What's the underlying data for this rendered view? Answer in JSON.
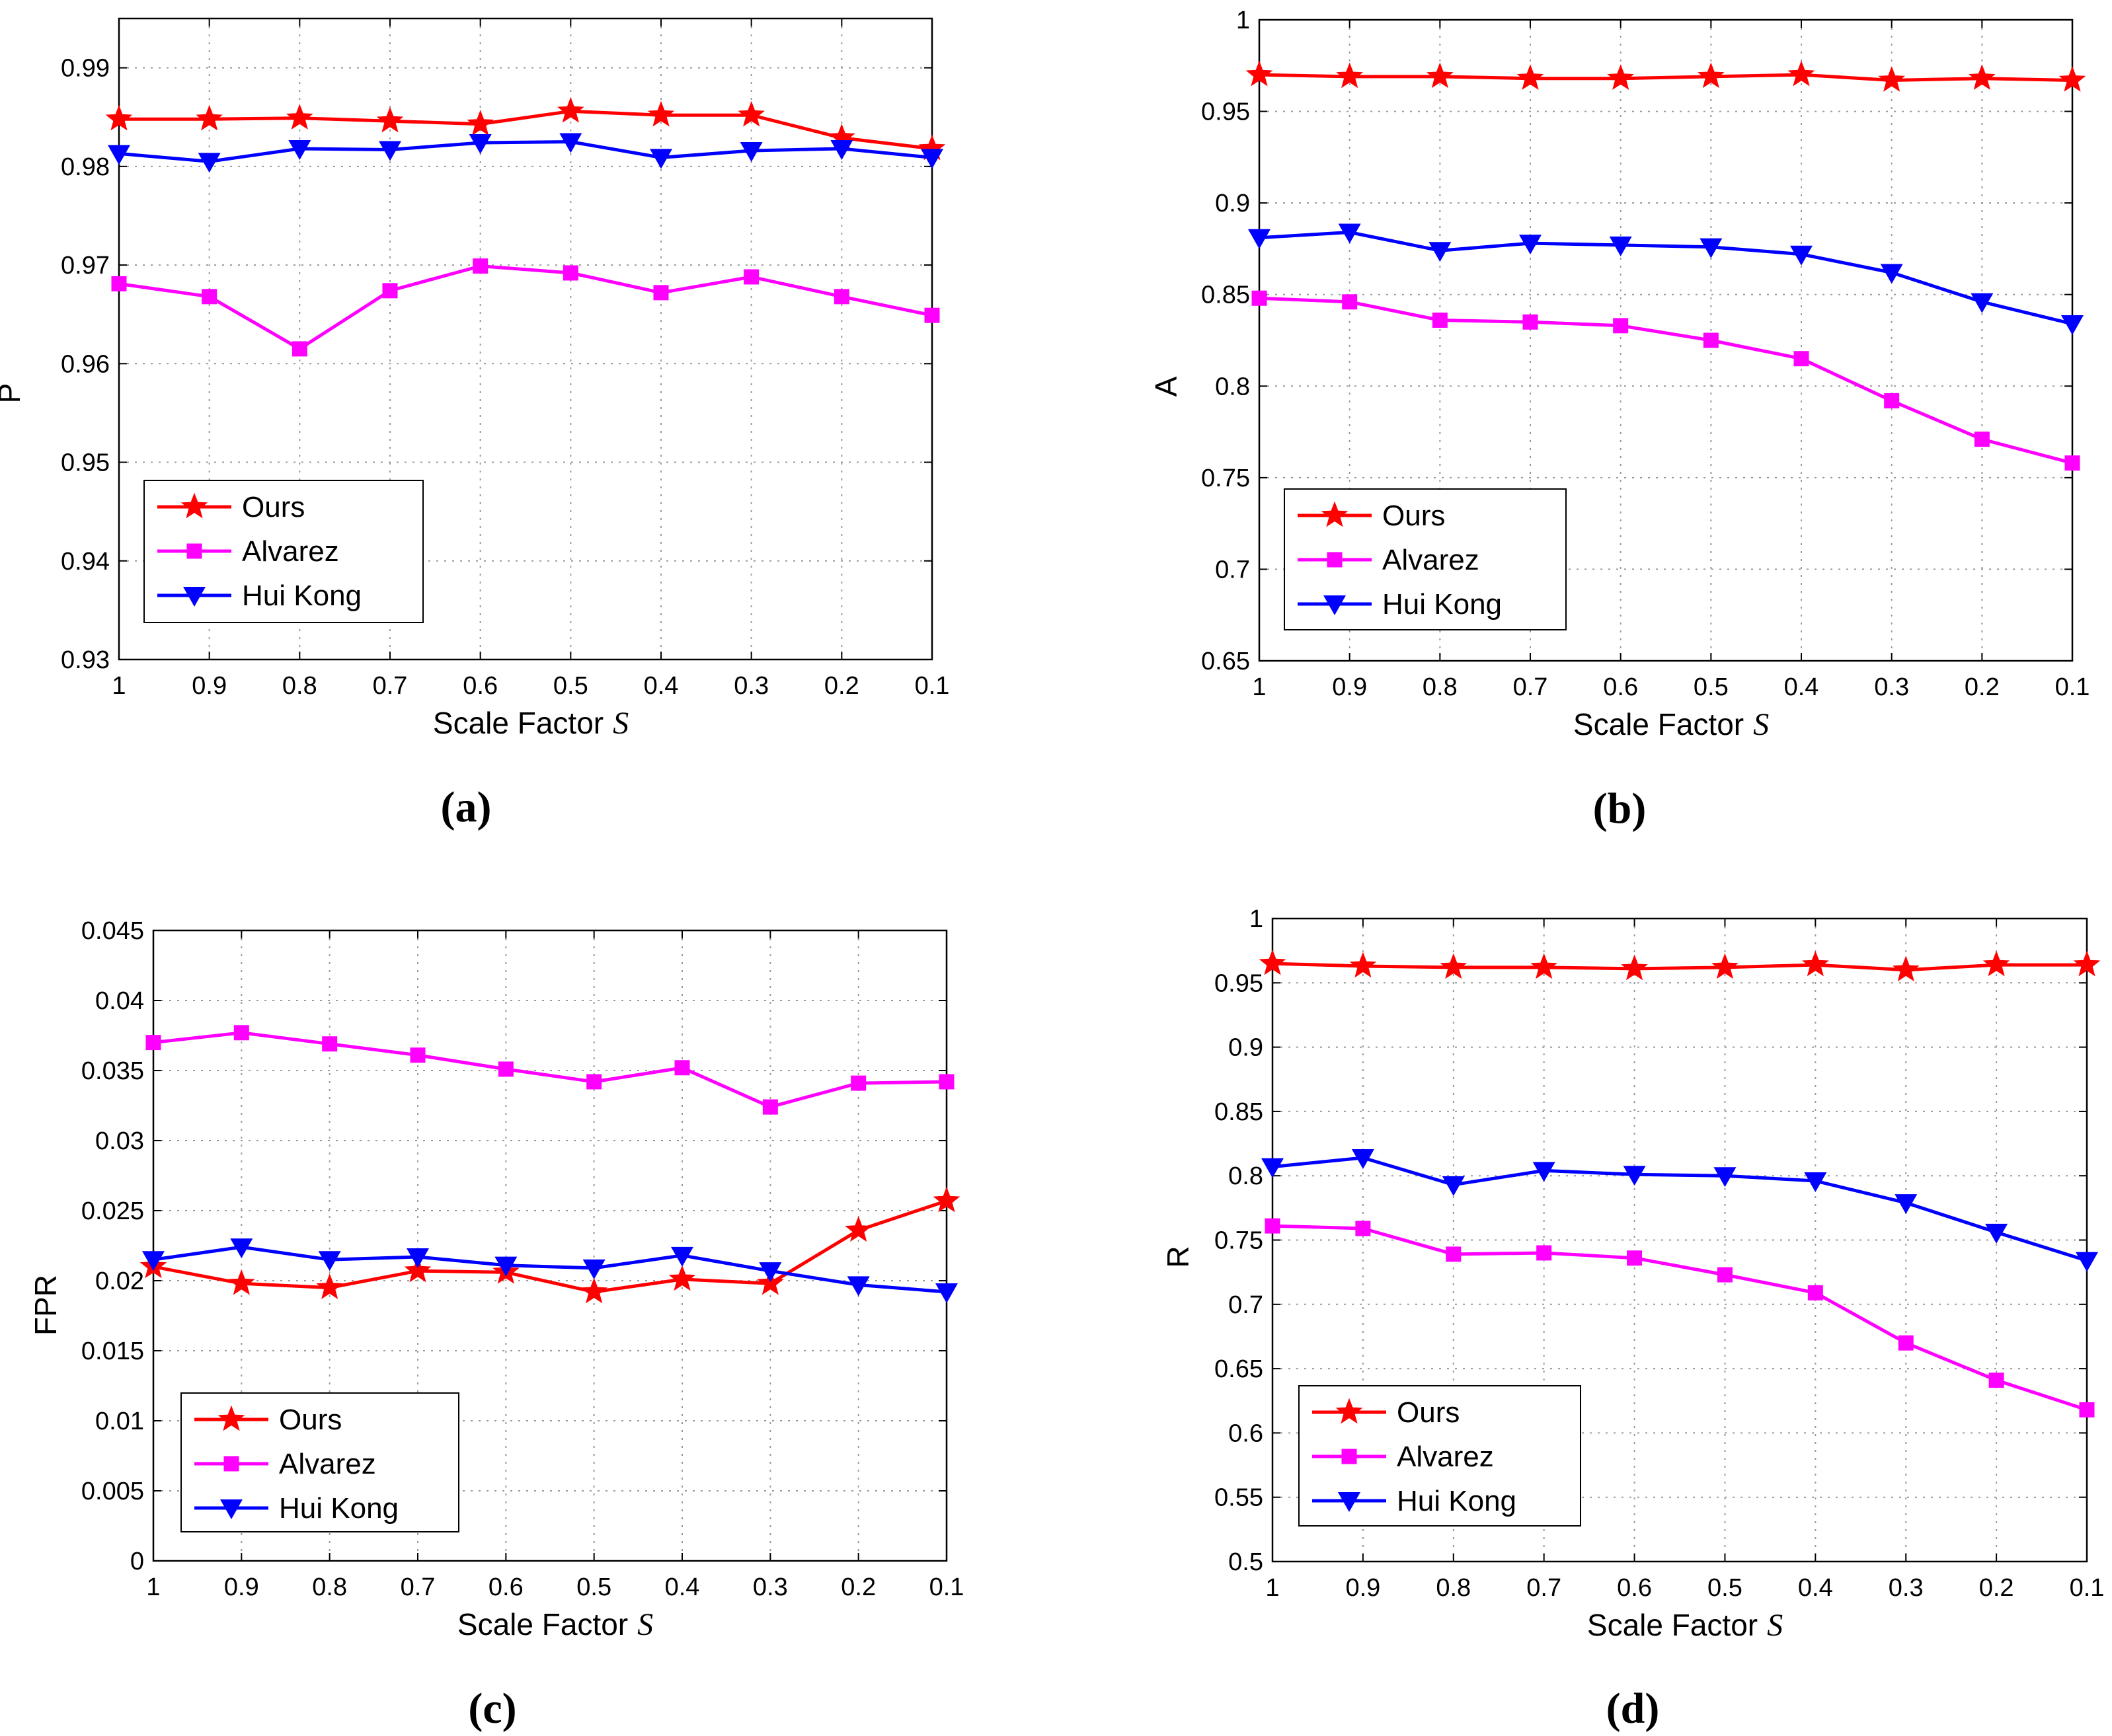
{
  "colors": {
    "ours": "#ff0000",
    "alvarez": "#ff00ff",
    "huikong": "#0000ff"
  },
  "markers": {
    "ours": "star",
    "alvarez": "square",
    "huikong": "triangle-down"
  },
  "chart_data": [
    {
      "panel_label": "(a)",
      "type": "line",
      "xlabel": "Scale Factor",
      "xlabel_var": "S",
      "ylabel": "P",
      "categories": [
        "1",
        "0.9",
        "0.8",
        "0.7",
        "0.6",
        "0.5",
        "0.4",
        "0.3",
        "0.2",
        "0.1"
      ],
      "ylim": [
        0.93,
        0.995
      ],
      "yticks": [
        0.93,
        0.94,
        0.95,
        0.96,
        0.97,
        0.98,
        0.99
      ],
      "ytick_labels": [
        "0.93",
        "0.94",
        "0.95",
        "0.96",
        "0.97",
        "0.98",
        "0.99"
      ],
      "grid": true,
      "legend_location": "lower-left",
      "series": [
        {
          "name": "Ours",
          "values": [
            0.9848,
            0.9848,
            0.9849,
            0.9846,
            0.9843,
            0.9856,
            0.9852,
            0.9852,
            0.9829,
            0.9818
          ]
        },
        {
          "name": "Alvarez",
          "values": [
            0.9681,
            0.9668,
            0.9615,
            0.9674,
            0.9699,
            0.9692,
            0.9672,
            0.9688,
            0.9668,
            0.9649
          ]
        },
        {
          "name": "Hui Kong",
          "values": [
            0.9813,
            0.9805,
            0.9818,
            0.9817,
            0.9824,
            0.9825,
            0.9809,
            0.9816,
            0.9818,
            0.9809
          ]
        }
      ]
    },
    {
      "panel_label": "(b)",
      "type": "line",
      "xlabel": "Scale Factor",
      "xlabel_var": "S",
      "ylabel": "A",
      "categories": [
        "1",
        "0.9",
        "0.8",
        "0.7",
        "0.6",
        "0.5",
        "0.4",
        "0.3",
        "0.2",
        "0.1"
      ],
      "ylim": [
        0.65,
        1.0
      ],
      "yticks": [
        0.65,
        0.7,
        0.75,
        0.8,
        0.85,
        0.9,
        0.95,
        1.0
      ],
      "ytick_labels": [
        "0.65",
        "0.7",
        "0.75",
        "0.8",
        "0.85",
        "0.9",
        "0.95",
        "1"
      ],
      "grid": true,
      "legend_location": "lower-left",
      "series": [
        {
          "name": "Ours",
          "values": [
            0.97,
            0.969,
            0.969,
            0.968,
            0.968,
            0.969,
            0.97,
            0.967,
            0.968,
            0.967
          ]
        },
        {
          "name": "Alvarez",
          "values": [
            0.848,
            0.846,
            0.836,
            0.835,
            0.833,
            0.825,
            0.815,
            0.792,
            0.771,
            0.758
          ]
        },
        {
          "name": "Hui Kong",
          "values": [
            0.881,
            0.884,
            0.874,
            0.878,
            0.877,
            0.876,
            0.872,
            0.862,
            0.846,
            0.834
          ]
        }
      ]
    },
    {
      "panel_label": "(c)",
      "type": "line",
      "xlabel": "Scale Factor",
      "xlabel_var": "S",
      "ylabel": "FPR",
      "categories": [
        "1",
        "0.9",
        "0.8",
        "0.7",
        "0.6",
        "0.5",
        "0.4",
        "0.3",
        "0.2",
        "0.1"
      ],
      "ylim": [
        0,
        0.045
      ],
      "yticks": [
        0,
        0.005,
        0.01,
        0.015,
        0.02,
        0.025,
        0.03,
        0.035,
        0.04,
        0.045
      ],
      "ytick_labels": [
        "0",
        "0.005",
        "0.01",
        "0.015",
        "0.02",
        "0.025",
        "0.03",
        "0.035",
        "0.04",
        "0.045"
      ],
      "grid": true,
      "legend_location": "lower-left",
      "series": [
        {
          "name": "Ours",
          "values": [
            0.021,
            0.0198,
            0.0195,
            0.0207,
            0.0206,
            0.0192,
            0.0201,
            0.0198,
            0.0236,
            0.0257
          ]
        },
        {
          "name": "Alvarez",
          "values": [
            0.037,
            0.0377,
            0.0369,
            0.0361,
            0.0351,
            0.0342,
            0.0352,
            0.0324,
            0.0341,
            0.0342
          ]
        },
        {
          "name": "Hui Kong",
          "values": [
            0.0215,
            0.0224,
            0.0215,
            0.0217,
            0.0211,
            0.0209,
            0.0218,
            0.0207,
            0.0197,
            0.0192
          ]
        }
      ]
    },
    {
      "panel_label": "(d)",
      "type": "line",
      "xlabel": "Scale Factor",
      "xlabel_var": "S",
      "ylabel": "R",
      "categories": [
        "1",
        "0.9",
        "0.8",
        "0.7",
        "0.6",
        "0.5",
        "0.4",
        "0.3",
        "0.2",
        "0.1"
      ],
      "ylim": [
        0.5,
        1.0
      ],
      "yticks": [
        0.5,
        0.55,
        0.6,
        0.65,
        0.7,
        0.75,
        0.8,
        0.85,
        0.9,
        0.95,
        1.0
      ],
      "ytick_labels": [
        "0.5",
        "0.55",
        "0.6",
        "0.65",
        "0.7",
        "0.75",
        "0.8",
        "0.85",
        "0.9",
        "0.95",
        "1"
      ],
      "grid": true,
      "legend_location": "lower-left",
      "series": [
        {
          "name": "Ours",
          "values": [
            0.965,
            0.963,
            0.962,
            0.962,
            0.961,
            0.962,
            0.964,
            0.96,
            0.964,
            0.964
          ]
        },
        {
          "name": "Alvarez",
          "values": [
            0.761,
            0.759,
            0.739,
            0.74,
            0.736,
            0.723,
            0.709,
            0.67,
            0.641,
            0.618
          ]
        },
        {
          "name": "Hui Kong",
          "values": [
            0.807,
            0.814,
            0.793,
            0.804,
            0.801,
            0.8,
            0.796,
            0.779,
            0.756,
            0.734
          ]
        }
      ]
    }
  ]
}
